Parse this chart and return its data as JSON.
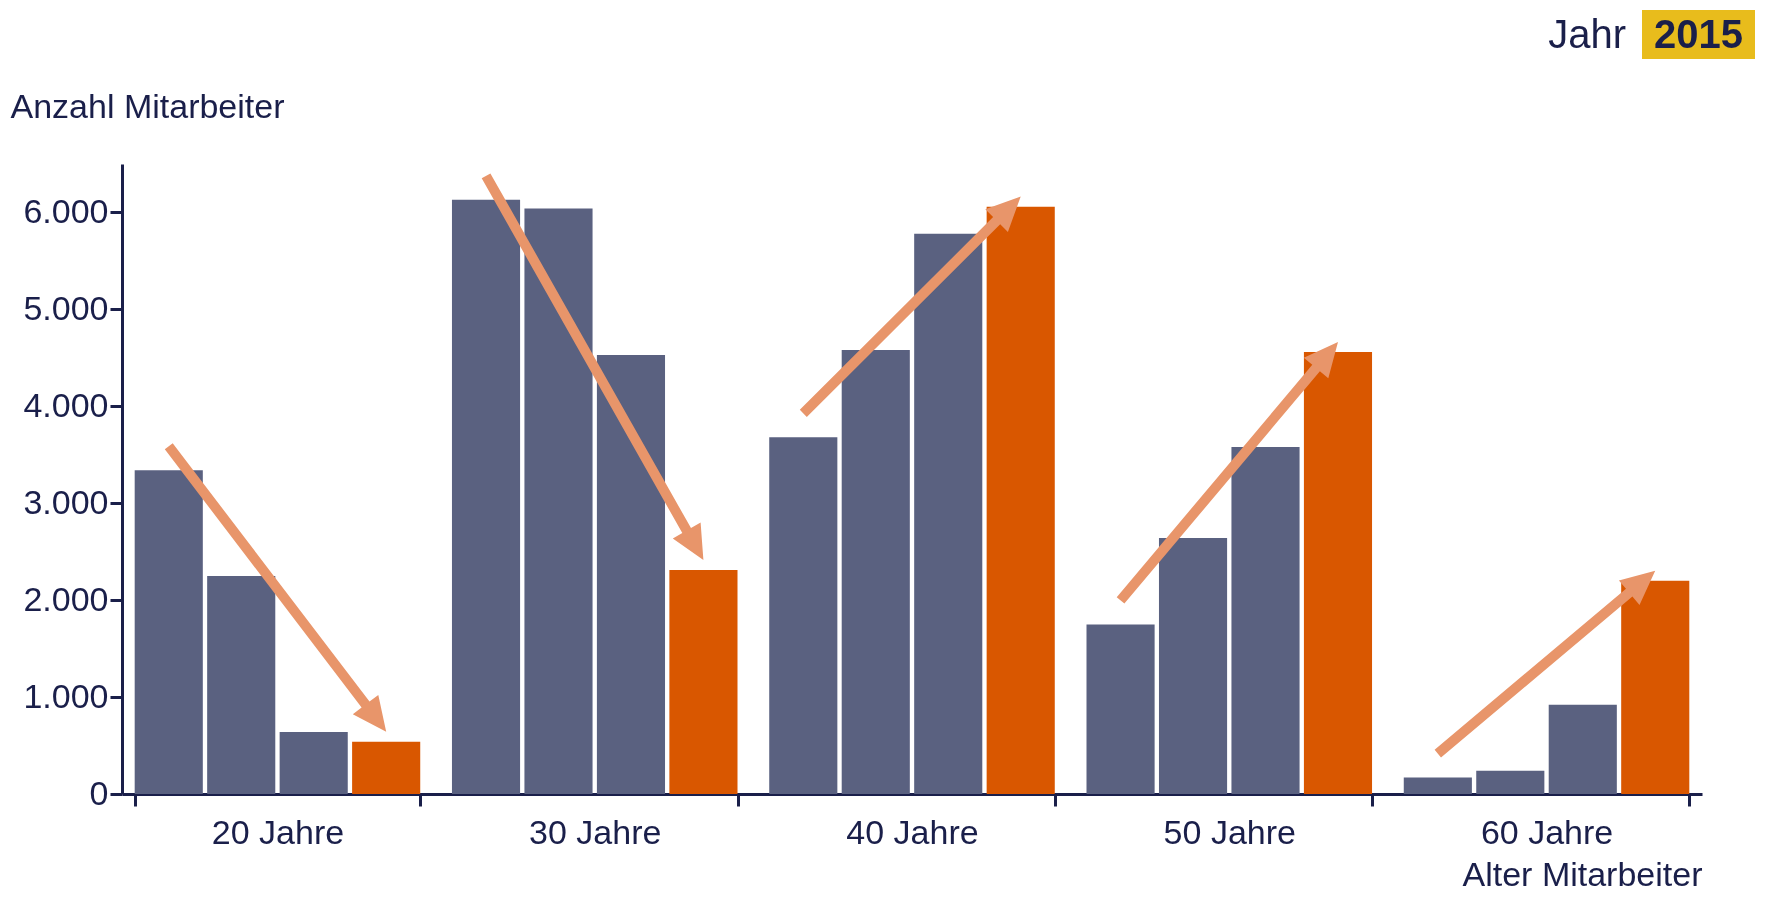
{
  "chart_data": {
    "type": "bar",
    "ylabel": "Anzahl Mitarbeiter",
    "xlabel": "Alter Mitarbeiter",
    "annotations": [
      "Jahr",
      "2015"
    ],
    "categories": [
      "20 Jahre",
      "30 Jahre",
      "40 Jahre",
      "50 Jahre",
      "60 Jahre"
    ],
    "series": [
      {
        "color": "#5a6180",
        "values": [
          3340,
          6130,
          3680,
          1750,
          170
        ]
      },
      {
        "color": "#5a6180",
        "values": [
          2250,
          6040,
          4580,
          2640,
          240
        ]
      },
      {
        "color": "#5a6180",
        "values": [
          640,
          4530,
          5780,
          3580,
          920
        ]
      },
      {
        "color": "#d95700",
        "values": [
          540,
          2310,
          6060,
          4560,
          2200
        ]
      }
    ],
    "ylim": [
      0,
      6500
    ],
    "yticks": [
      {
        "value": 0,
        "label": "0"
      },
      {
        "value": 1000,
        "label": "1.000"
      },
      {
        "value": 2000,
        "label": "2.000"
      },
      {
        "value": 3000,
        "label": "3.000"
      },
      {
        "value": 4000,
        "label": "4.000"
      },
      {
        "value": 5000,
        "label": "5.000"
      },
      {
        "value": 6000,
        "label": "6.000"
      }
    ],
    "grid": false
  }
}
